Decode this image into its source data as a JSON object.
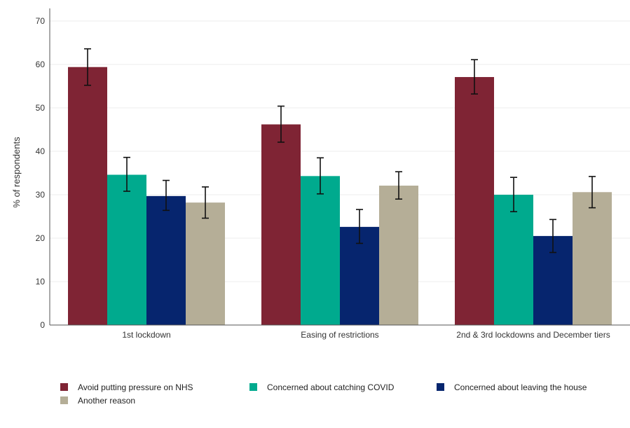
{
  "chart_data": {
    "type": "bar",
    "title": "",
    "xlabel": "",
    "ylabel": "% of respondents",
    "ylim": [
      0,
      70
    ],
    "yticks": [
      0,
      10,
      20,
      30,
      40,
      50,
      60,
      70
    ],
    "grid": true,
    "legend_position": "bottom",
    "categories": [
      "1st lockdown",
      "Easing of restrictions",
      "2nd & 3rd lockdowns and December tiers"
    ],
    "series": [
      {
        "name": "Avoid putting pressure on NHS",
        "color": "#7f2434",
        "values": [
          59.4,
          46.2,
          57.1
        ],
        "error_low": [
          55.2,
          42.1,
          53.2
        ],
        "error_high": [
          63.6,
          50.4,
          61.1
        ]
      },
      {
        "name": "Concerned about catching COVID",
        "color": "#00aa8e",
        "values": [
          34.6,
          34.3,
          30.0
        ],
        "error_low": [
          30.8,
          30.2,
          26.1
        ],
        "error_high": [
          38.6,
          38.5,
          34.0
        ]
      },
      {
        "name": "Concerned about leaving the house",
        "color": "#06256e",
        "values": [
          29.7,
          22.6,
          20.5
        ],
        "error_low": [
          26.4,
          18.8,
          16.7
        ],
        "error_high": [
          33.3,
          26.6,
          24.3
        ]
      },
      {
        "name": "Another reason",
        "color": "#b5ae97",
        "values": [
          28.2,
          32.1,
          30.6
        ],
        "error_low": [
          24.6,
          29.0,
          27.0
        ],
        "error_high": [
          31.8,
          35.3,
          34.2
        ]
      }
    ]
  }
}
